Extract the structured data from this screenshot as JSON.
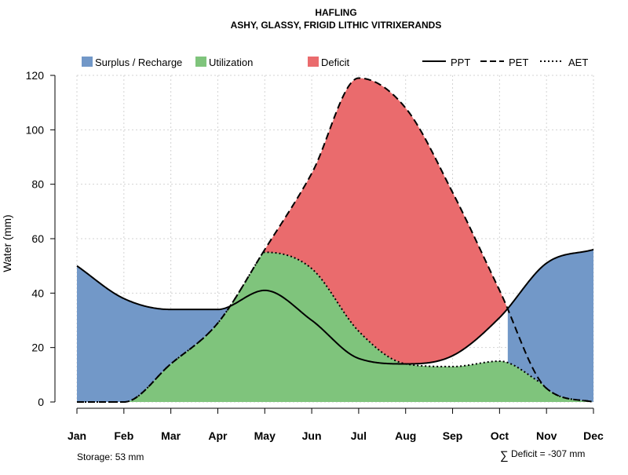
{
  "chart_data": {
    "type": "area",
    "title": "HAFLING",
    "subtitle": "ASHY, GLASSY, FRIGID LITHIC VITRIXERANDS",
    "xlabel": "",
    "ylabel": "Water (mm)",
    "ylim": [
      0,
      120
    ],
    "yticks": [
      0,
      20,
      40,
      60,
      80,
      100,
      120
    ],
    "grid": true,
    "categories": [
      "Jan",
      "Feb",
      "Mar",
      "Apr",
      "May",
      "Jun",
      "Jul",
      "Aug",
      "Sep",
      "Oct",
      "Nov",
      "Dec"
    ],
    "series": [
      {
        "name": "PPT",
        "style": "solid",
        "values": [
          50,
          38,
          34,
          34,
          41,
          30,
          16,
          14,
          17,
          31,
          51,
          56
        ]
      },
      {
        "name": "PET",
        "style": "dashed",
        "values": [
          0,
          0,
          14,
          29,
          56,
          84,
          119,
          108,
          77,
          41,
          5,
          0
        ]
      },
      {
        "name": "AET",
        "style": "dotted",
        "values": [
          0,
          0,
          14,
          29,
          55,
          49,
          26,
          14,
          13,
          15,
          6,
          0
        ]
      }
    ],
    "legend": {
      "placement": "top",
      "fills": [
        {
          "label": "Surplus / Recharge",
          "color": "#7298c8"
        },
        {
          "label": "Utilization",
          "color": "#7fc47c"
        },
        {
          "label": "Deficit",
          "color": "#ea6b6d"
        }
      ],
      "lines": [
        {
          "label": "PPT",
          "style": "solid"
        },
        {
          "label": "PET",
          "style": "dashed"
        },
        {
          "label": "AET",
          "style": "dotted"
        }
      ]
    },
    "annotations": {
      "storage": "Storage: 53 mm",
      "deficit_symbol": "∑",
      "deficit": "Deficit = -307 mm"
    }
  }
}
